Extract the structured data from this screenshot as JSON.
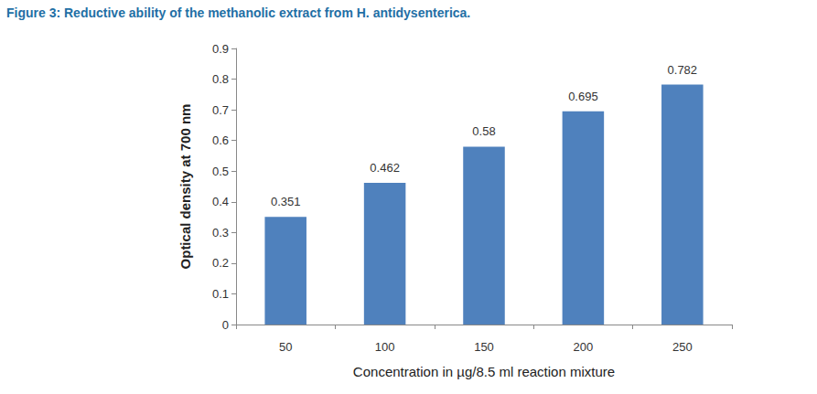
{
  "chart_data": {
    "type": "bar",
    "title": "Figure 3: Reductive ability of the methanolic extract from H. antidysenterica.",
    "x_label": "Concentration in µg/8.5 ml reaction mixture",
    "y_label": "Optical density at 700 nm",
    "categories": [
      "50",
      "100",
      "150",
      "200",
      "250"
    ],
    "values": [
      0.351,
      0.462,
      0.58,
      0.695,
      0.782
    ],
    "color": "#4f81bd",
    "ylim": [
      0,
      0.9
    ],
    "yticks": [
      0,
      0.1,
      0.2,
      0.3,
      0.4,
      0.5,
      0.6,
      0.7,
      0.8,
      0.9
    ],
    "grid": false,
    "data_labels": true
  }
}
